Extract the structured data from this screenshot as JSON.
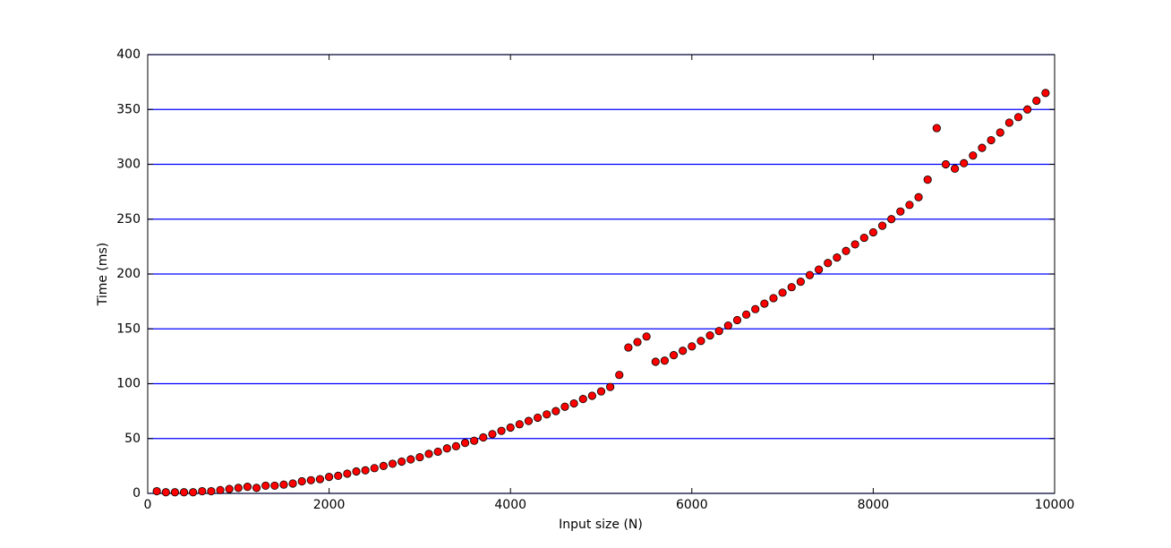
{
  "chart_data": {
    "type": "scatter",
    "xlabel": "Input size (N)",
    "ylabel": "Time (ms)",
    "x": [
      100,
      200,
      300,
      400,
      500,
      600,
      700,
      800,
      900,
      1000,
      1100,
      1200,
      1300,
      1400,
      1500,
      1600,
      1700,
      1800,
      1900,
      2000,
      2100,
      2200,
      2300,
      2400,
      2500,
      2600,
      2700,
      2800,
      2900,
      3000,
      3100,
      3200,
      3300,
      3400,
      3500,
      3600,
      3700,
      3800,
      3900,
      4000,
      4100,
      4200,
      4300,
      4400,
      4500,
      4600,
      4700,
      4800,
      4900,
      5000,
      5100,
      5200,
      5300,
      5400,
      5500,
      5600,
      5700,
      5800,
      5900,
      6000,
      6100,
      6200,
      6300,
      6400,
      6500,
      6600,
      6700,
      6800,
      6900,
      7000,
      7100,
      7200,
      7300,
      7400,
      7500,
      7600,
      7700,
      7800,
      7900,
      8000,
      8100,
      8200,
      8300,
      8400,
      8500,
      8600,
      8700,
      8800,
      8900,
      9000,
      9100,
      9200,
      9300,
      9400,
      9500,
      9600,
      9700,
      9800,
      9900
    ],
    "values": [
      2,
      1,
      1,
      1,
      1,
      2,
      2,
      3,
      4,
      5,
      6,
      5,
      7,
      7,
      8,
      9,
      11,
      12,
      13,
      15,
      16,
      18,
      20,
      21,
      23,
      25,
      27,
      29,
      31,
      33,
      36,
      38,
      41,
      43,
      46,
      48,
      51,
      54,
      57,
      60,
      63,
      66,
      69,
      72,
      75,
      79,
      82,
      86,
      89,
      93,
      97,
      108,
      133,
      138,
      143,
      120,
      121,
      126,
      130,
      134,
      139,
      144,
      148,
      153,
      158,
      163,
      168,
      173,
      178,
      183,
      188,
      193,
      199,
      204,
      210,
      215,
      221,
      227,
      233,
      238,
      244,
      250,
      257,
      263,
      270,
      286,
      333,
      300,
      296,
      301,
      308,
      315,
      322,
      329,
      338,
      343,
      350,
      358,
      365
    ],
    "color": "#ff0000",
    "edge_color": "#000000",
    "xlim": [
      0,
      10000
    ],
    "xticks": [
      0,
      2000,
      4000,
      6000,
      8000,
      10000
    ],
    "ylim": [
      0,
      400
    ],
    "yticks": [
      0,
      50,
      100,
      150,
      200,
      250,
      300,
      350,
      400
    ],
    "grid": true,
    "grid_color": "#0000ff"
  }
}
